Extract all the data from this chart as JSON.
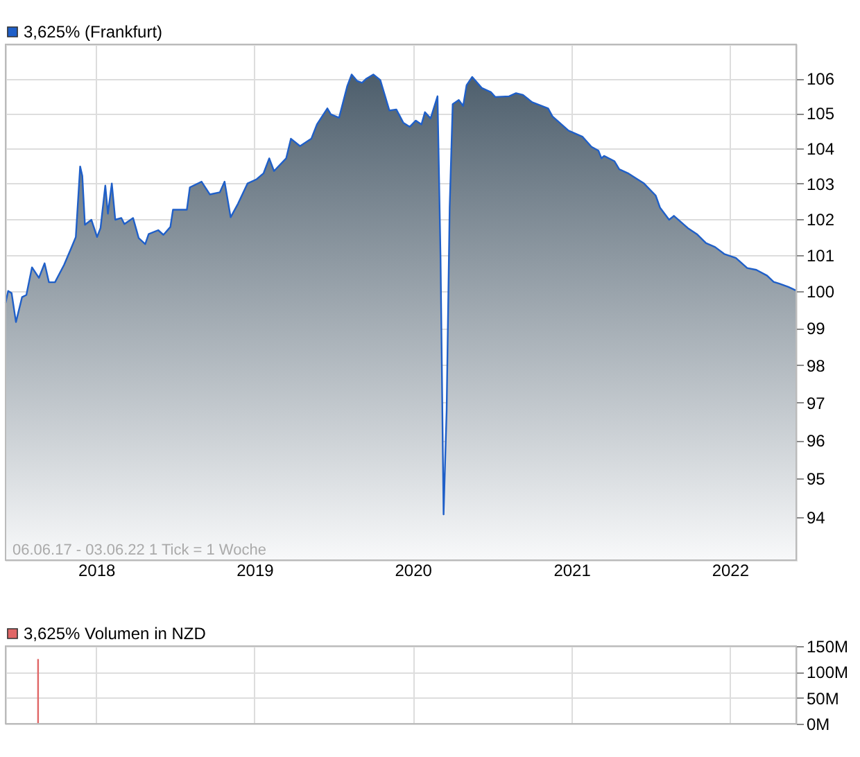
{
  "chart_data": [
    {
      "type": "area",
      "legend": "top left",
      "grid": true,
      "log": "y",
      "annotations": [
        "06.06.17 - 03.06.22   1 Tick = 1 Woche"
      ],
      "xlim": [
        "2017-06-06",
        "2022-06-03"
      ],
      "xticks": [
        "2018",
        "2019",
        "2020",
        "2021",
        "2022"
      ],
      "ylim": [
        92.9,
        107
      ],
      "yticks": [
        94,
        95,
        96,
        97,
        98,
        99,
        100,
        101,
        102,
        103,
        104,
        105,
        106
      ],
      "x": [
        "2017-06-06",
        "2017-06-12",
        "2017-06-20",
        "2017-06-30",
        "2017-07-14",
        "2017-07-24",
        "2017-08-06",
        "2017-08-22",
        "2017-09-04",
        "2017-09-14",
        "2017-09-28",
        "2017-10-19",
        "2017-11-04",
        "2017-11-15",
        "2017-11-25",
        "2017-11-30",
        "2017-12-06",
        "2017-12-21",
        "2018-01-03",
        "2018-01-11",
        "2018-01-22",
        "2018-01-28",
        "2018-02-06",
        "2018-02-14",
        "2018-02-28",
        "2018-03-07",
        "2018-03-27",
        "2018-04-09",
        "2018-04-24",
        "2018-05-02",
        "2018-05-24",
        "2018-06-05",
        "2018-06-21",
        "2018-06-27",
        "2018-07-29",
        "2018-08-05",
        "2018-09-01",
        "2018-09-20",
        "2018-10-13",
        "2018-10-24",
        "2018-11-07",
        "2018-11-24",
        "2018-12-16",
        "2019-01-06",
        "2019-01-22",
        "2019-02-04",
        "2019-02-15",
        "2019-03-15",
        "2019-03-26",
        "2019-04-16",
        "2019-05-12",
        "2019-05-25",
        "2019-06-18",
        "2019-06-26",
        "2019-07-15",
        "2019-08-03",
        "2019-08-13",
        "2019-08-26",
        "2019-09-06",
        "2019-09-16",
        "2019-10-02",
        "2019-10-18",
        "2019-11-08",
        "2019-11-24",
        "2019-12-10",
        "2019-12-25",
        "2020-01-08",
        "2020-01-21",
        "2020-01-29",
        "2020-02-11",
        "2020-02-27",
        "2020-03-05",
        "2020-03-12",
        "2020-03-19",
        "2020-03-26",
        "2020-04-02",
        "2020-04-16",
        "2020-04-26",
        "2020-05-04",
        "2020-05-17",
        "2020-06-08",
        "2020-06-29",
        "2020-07-09",
        "2020-08-10",
        "2020-08-26",
        "2020-09-11",
        "2020-10-02",
        "2020-11-08",
        "2020-11-18",
        "2020-12-25",
        "2021-01-26",
        "2021-02-16",
        "2021-03-04",
        "2021-03-11",
        "2021-03-17",
        "2021-04-10",
        "2021-04-21",
        "2021-05-11",
        "2021-06-17",
        "2021-07-14",
        "2021-07-24",
        "2021-08-14",
        "2021-08-25",
        "2021-09-26",
        "2021-10-17",
        "2021-11-07",
        "2021-11-28",
        "2021-12-19",
        "2022-01-15",
        "2022-02-10",
        "2022-03-03",
        "2022-03-28",
        "2022-04-12",
        "2022-04-25",
        "2022-05-16",
        "2022-06-03"
      ],
      "series": [
        {
          "name": "3,625% (Frankfurt)",
          "color": "#1f5fc8",
          "values": [
            99.68,
            100.01,
            99.95,
            99.16,
            99.84,
            99.9,
            100.66,
            100.37,
            100.77,
            100.25,
            100.25,
            100.73,
            101.18,
            101.5,
            103.48,
            103.21,
            101.84,
            101.98,
            101.5,
            101.75,
            102.94,
            102.15,
            103.0,
            101.98,
            102.03,
            101.86,
            102.03,
            101.47,
            101.3,
            101.58,
            101.69,
            101.56,
            101.78,
            102.26,
            102.26,
            102.89,
            103.05,
            102.69,
            102.75,
            103.05,
            102.05,
            102.43,
            103.0,
            103.12,
            103.29,
            103.71,
            103.35,
            103.71,
            104.27,
            104.06,
            104.27,
            104.68,
            105.14,
            104.97,
            104.87,
            105.79,
            106.12,
            105.93,
            105.88,
            106.0,
            106.12,
            105.96,
            105.08,
            105.11,
            104.73,
            104.61,
            104.79,
            104.68,
            105.03,
            104.85,
            105.49,
            100.9,
            94.07,
            96.78,
            102.32,
            105.26,
            105.38,
            105.21,
            105.81,
            106.05,
            105.73,
            105.61,
            105.47,
            105.49,
            105.58,
            105.53,
            105.32,
            105.14,
            104.91,
            104.5,
            104.33,
            104.04,
            103.93,
            103.71,
            103.78,
            103.63,
            103.4,
            103.29,
            103.0,
            102.66,
            102.32,
            101.98,
            102.09,
            101.75,
            101.58,
            101.33,
            101.22,
            101.03,
            100.92,
            100.64,
            100.59,
            100.43,
            100.26,
            100.21,
            100.12,
            100.02
          ]
        }
      ]
    },
    {
      "type": "bar",
      "legend": "top left",
      "grid": true,
      "tick_labels": "y",
      "xlim": [
        "2017-06-06",
        "2022-06-03"
      ],
      "xticks": [
        {
          "value": "2018",
          "label": null
        },
        {
          "value": "2019",
          "label": null
        },
        {
          "value": "2020",
          "label": null
        },
        {
          "value": "2021",
          "label": null
        },
        {
          "value": "2022",
          "label": null
        }
      ],
      "ylim": [
        0,
        150
      ],
      "yticks": [
        {
          "value": 0,
          "label": "0M"
        },
        {
          "value": 50,
          "label": "50M"
        },
        {
          "value": 100,
          "label": "100M"
        },
        {
          "value": 150,
          "label": "150M"
        }
      ],
      "x": [
        "2017-08-20"
      ],
      "series": [
        {
          "name": "3,625% Volumen in NZD",
          "color": "#e06666",
          "colors": [
            "#e06666"
          ],
          "values": [
            125
          ]
        }
      ]
    }
  ]
}
